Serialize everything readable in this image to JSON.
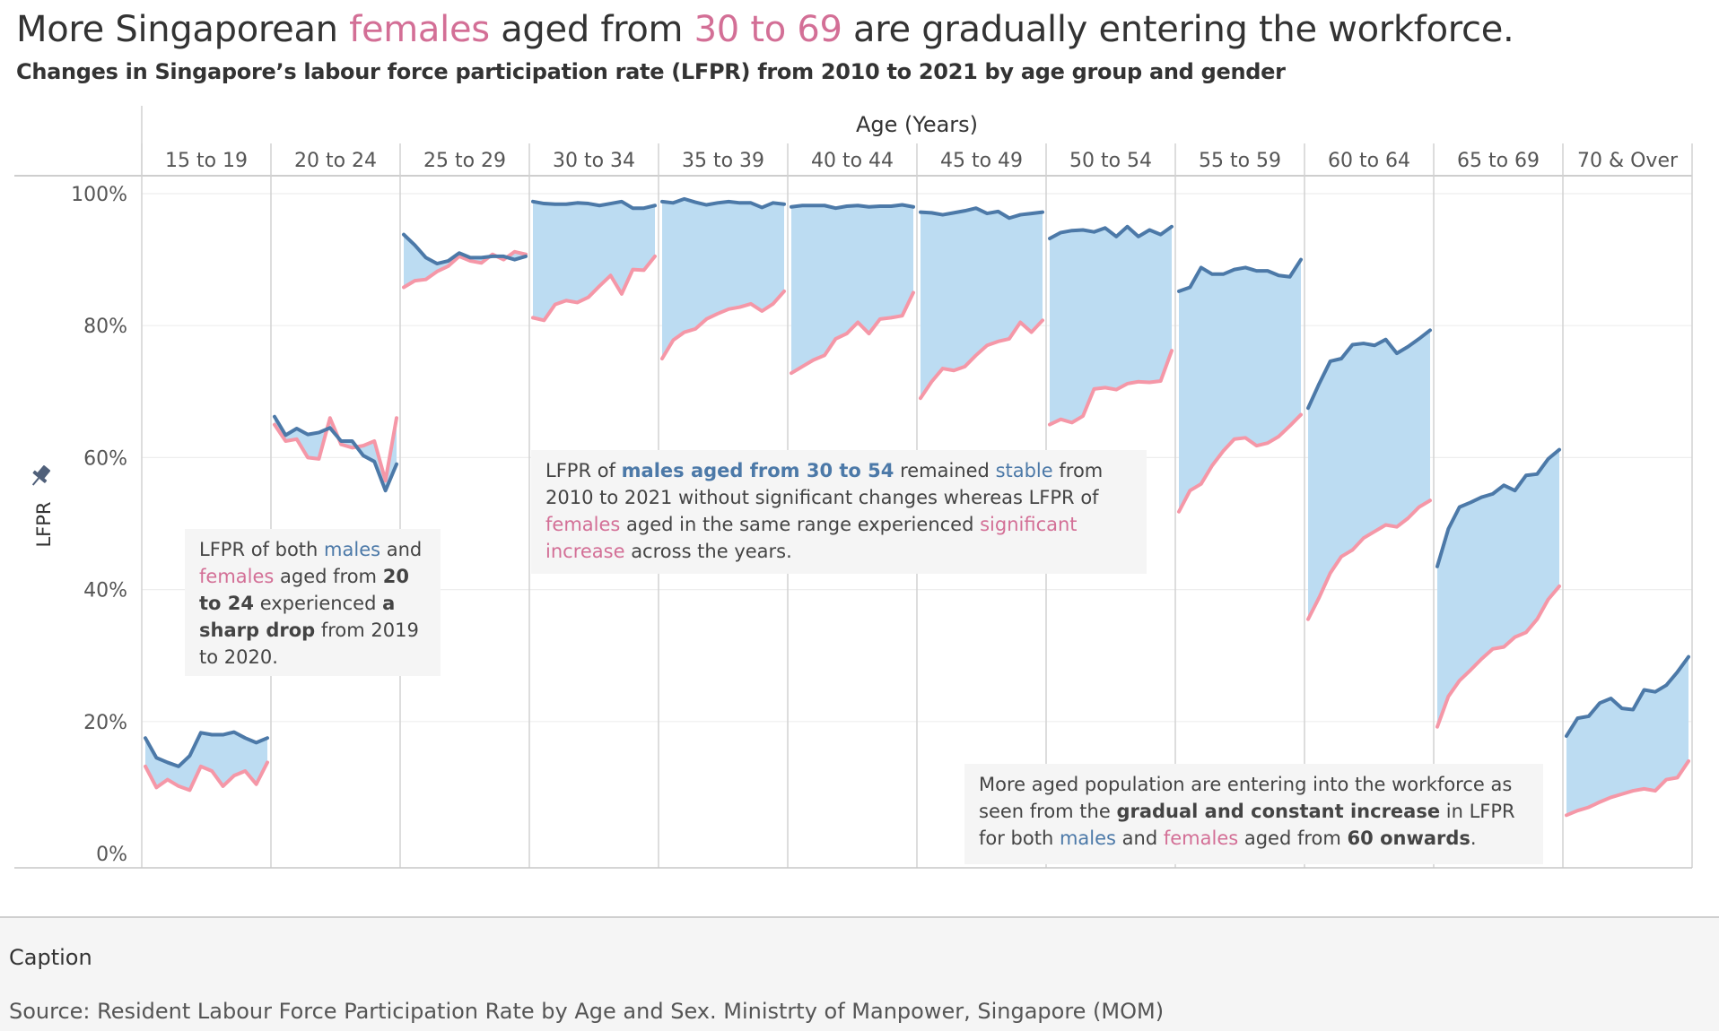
{
  "title": {
    "part1": "More Singaporean ",
    "highlight1": "females",
    "part2": " aged from ",
    "highlight2": "30 to 69",
    "part3": " are gradually entering the workforce."
  },
  "subtitle": "Changes in Singapore’s labour force participation rate (LFPR) from 2010 to 2021 by age group and gender",
  "annotations": {
    "a1": {
      "t1": "LFPR of both ",
      "males": "males",
      "t2": " and ",
      "females": "females",
      "t3": " aged from ",
      "b1": "20 to 24",
      "t4": " experienced ",
      "b2": "a sharp drop",
      "t5": " from 2019 to 2020."
    },
    "a2": {
      "t1": "LFPR of ",
      "b1": "males aged from 30 to 54",
      "t2": " remained ",
      "stable": "stable",
      "t3": " from 2010 to 2021 without significant changes whereas LFPR of ",
      "females": "females",
      "t4": " aged in the same range experienced ",
      "inc": "significant increase",
      "t5": " across the years."
    },
    "a3": {
      "t1": "More aged population are entering into the workforce as seen from the ",
      "b1": "gradual and constant increase",
      "t2": " in LFPR for both ",
      "males": "males",
      "t3": " and ",
      "females": "females",
      "t4": " aged from ",
      "b2": "60 onwards",
      "t5": "."
    }
  },
  "caption": {
    "label": "Caption",
    "source": "Source: Resident Labour Force Participation Rate by Age and Sex. Ministrty of Manpower, Singapore (MOM)"
  },
  "colors": {
    "male": "#4c79a8",
    "female": "#f597a7",
    "fill": "#bcdcf2",
    "accent_pink": "#d36f96"
  },
  "icon": "pin-icon",
  "chart_data": {
    "type": "line",
    "column_header": "Age (Years)",
    "ylabel": "LFPR",
    "ylim": [
      0,
      100
    ],
    "yticks": [
      0,
      20,
      40,
      60,
      80,
      100
    ],
    "ytick_labels": [
      "0%",
      "20%",
      "40%",
      "60%",
      "80%",
      "100%"
    ],
    "x": [
      2010,
      2011,
      2012,
      2013,
      2014,
      2015,
      2016,
      2017,
      2018,
      2019,
      2020,
      2021
    ],
    "panels": [
      {
        "label": "15 to 19",
        "male": [
          17.5,
          14.5,
          13.8,
          13.2,
          14.8,
          18.3,
          18.0,
          18.0,
          18.4,
          17.5,
          16.8,
          17.5
        ],
        "female": [
          13.2,
          10.0,
          11.2,
          10.2,
          9.6,
          13.2,
          12.5,
          10.2,
          11.8,
          12.5,
          10.5,
          13.8
        ]
      },
      {
        "label": "20 to 24",
        "male": [
          66.2,
          63.4,
          64.4,
          63.5,
          63.8,
          64.5,
          62.5,
          62.5,
          60.3,
          59.4,
          55.0,
          59.0
        ],
        "female": [
          65.0,
          62.5,
          62.8,
          60.0,
          59.8,
          66.0,
          62.0,
          61.5,
          61.8,
          62.5,
          56.5,
          66.0
        ]
      },
      {
        "label": "25 to 29",
        "male": [
          93.8,
          92.2,
          90.3,
          89.4,
          89.8,
          91.0,
          90.3,
          90.3,
          90.5,
          90.5,
          90.0,
          90.5
        ],
        "female": [
          85.8,
          86.8,
          87.0,
          88.2,
          89.0,
          90.5,
          89.8,
          89.5,
          90.8,
          90.0,
          91.2,
          90.8
        ]
      },
      {
        "label": "30 to 34",
        "male": [
          98.8,
          98.5,
          98.4,
          98.4,
          98.6,
          98.5,
          98.2,
          98.5,
          98.8,
          97.8,
          97.8,
          98.2
        ],
        "female": [
          81.2,
          80.8,
          83.2,
          83.8,
          83.5,
          84.3,
          86.0,
          87.6,
          84.8,
          88.5,
          88.4,
          90.5
        ]
      },
      {
        "label": "35 to 39",
        "male": [
          98.8,
          98.6,
          99.2,
          98.7,
          98.3,
          98.6,
          98.8,
          98.6,
          98.6,
          97.9,
          98.6,
          98.4
        ],
        "female": [
          75.0,
          77.8,
          79.0,
          79.5,
          81.0,
          81.8,
          82.5,
          82.8,
          83.3,
          82.2,
          83.3,
          85.2
        ]
      },
      {
        "label": "40 to 44",
        "male": [
          98.0,
          98.2,
          98.2,
          98.2,
          97.8,
          98.1,
          98.2,
          98.0,
          98.1,
          98.1,
          98.3,
          98.0
        ],
        "female": [
          72.8,
          73.8,
          74.8,
          75.5,
          78.0,
          78.8,
          80.5,
          78.8,
          81.0,
          81.2,
          81.5,
          85.0
        ]
      },
      {
        "label": "45 to 49",
        "male": [
          97.2,
          97.1,
          96.8,
          97.1,
          97.4,
          97.8,
          97.0,
          97.3,
          96.3,
          96.8,
          97.0,
          97.2
        ],
        "female": [
          69.0,
          71.5,
          73.5,
          73.2,
          73.8,
          75.5,
          77.0,
          77.6,
          78.0,
          80.5,
          79.0,
          80.8
        ]
      },
      {
        "label": "50 to 54",
        "male": [
          93.2,
          94.1,
          94.4,
          94.5,
          94.2,
          94.8,
          93.5,
          95.0,
          93.5,
          94.5,
          93.8,
          95.0
        ],
        "female": [
          65.0,
          65.8,
          65.3,
          66.3,
          70.4,
          70.6,
          70.3,
          71.2,
          71.5,
          71.4,
          71.6,
          76.2
        ]
      },
      {
        "label": "55 to 59",
        "male": [
          85.2,
          85.8,
          88.8,
          87.8,
          87.8,
          88.5,
          88.8,
          88.3,
          88.3,
          87.6,
          87.4,
          90.0
        ],
        "female": [
          51.8,
          55.0,
          56.0,
          58.8,
          61.0,
          62.8,
          63.0,
          61.8,
          62.2,
          63.2,
          64.8,
          66.5
        ]
      },
      {
        "label": "60 to 64",
        "male": [
          67.5,
          71.2,
          74.6,
          75.0,
          77.1,
          77.3,
          77.0,
          77.9,
          75.8,
          76.8,
          78.0,
          79.3
        ],
        "female": [
          35.5,
          38.8,
          42.5,
          45.0,
          46.0,
          47.8,
          48.8,
          49.8,
          49.5,
          50.8,
          52.5,
          53.5
        ]
      },
      {
        "label": "65 to 69",
        "male": [
          43.5,
          49.2,
          52.5,
          53.2,
          54.0,
          54.5,
          55.8,
          55.0,
          57.3,
          57.5,
          59.8,
          61.2
        ],
        "female": [
          19.2,
          23.8,
          26.2,
          27.8,
          29.5,
          31.0,
          31.3,
          32.8,
          33.5,
          35.5,
          38.5,
          40.5
        ]
      },
      {
        "label": "70 & Over",
        "male": [
          17.8,
          20.5,
          20.8,
          22.8,
          23.5,
          22.0,
          21.8,
          24.8,
          24.5,
          25.5,
          27.5,
          29.8
        ],
        "female": [
          5.8,
          6.5,
          7.0,
          7.8,
          8.5,
          9.0,
          9.5,
          9.8,
          9.5,
          11.2,
          11.5,
          14.0
        ]
      }
    ]
  }
}
